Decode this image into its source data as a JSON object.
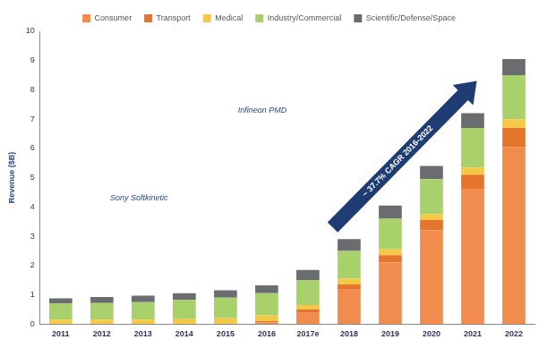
{
  "chart_data": {
    "type": "bar",
    "y_label": "Revenue ($B)",
    "categories": [
      "2011",
      "2012",
      "2013",
      "2014",
      "2015",
      "2016",
      "2017e",
      "2018",
      "2019",
      "2020",
      "2021",
      "2022"
    ],
    "series": [
      {
        "name": "Consumer",
        "color": "#f28c4e",
        "values": [
          0,
          0,
          0,
          0,
          0,
          0.05,
          0.4,
          1.2,
          2.1,
          3.2,
          4.6,
          6.05
        ]
      },
      {
        "name": "Transport",
        "color": "#e5742c",
        "values": [
          0,
          0,
          0,
          0,
          0,
          0.05,
          0.1,
          0.15,
          0.25,
          0.35,
          0.5,
          0.65
        ]
      },
      {
        "name": "Medical",
        "color": "#f6c945",
        "values": [
          0.15,
          0.15,
          0.15,
          0.17,
          0.2,
          0.2,
          0.15,
          0.2,
          0.2,
          0.2,
          0.25,
          0.3
        ]
      },
      {
        "name": "Industry/Commercial",
        "color": "#a8d06b",
        "values": [
          0.55,
          0.57,
          0.6,
          0.65,
          0.7,
          0.75,
          0.85,
          0.95,
          1.05,
          1.2,
          1.35,
          1.5
        ]
      },
      {
        "name": "Scientific/Defense/Space",
        "color": "#6b6c70",
        "values": [
          0.18,
          0.2,
          0.22,
          0.23,
          0.25,
          0.27,
          0.35,
          0.4,
          0.45,
          0.45,
          0.5,
          0.55
        ]
      }
    ],
    "ylim": [
      0,
      10
    ],
    "yticks": [
      0,
      1,
      2,
      3,
      4,
      5,
      6,
      7,
      8,
      9,
      10
    ],
    "stacked": true,
    "grid": false,
    "legend": "top",
    "annotations": [
      {
        "text": "~ 37.7% CAGR 2016-2022"
      },
      {
        "text": "Infineon PMD"
      },
      {
        "text": "Sony Softkinetic"
      }
    ]
  }
}
